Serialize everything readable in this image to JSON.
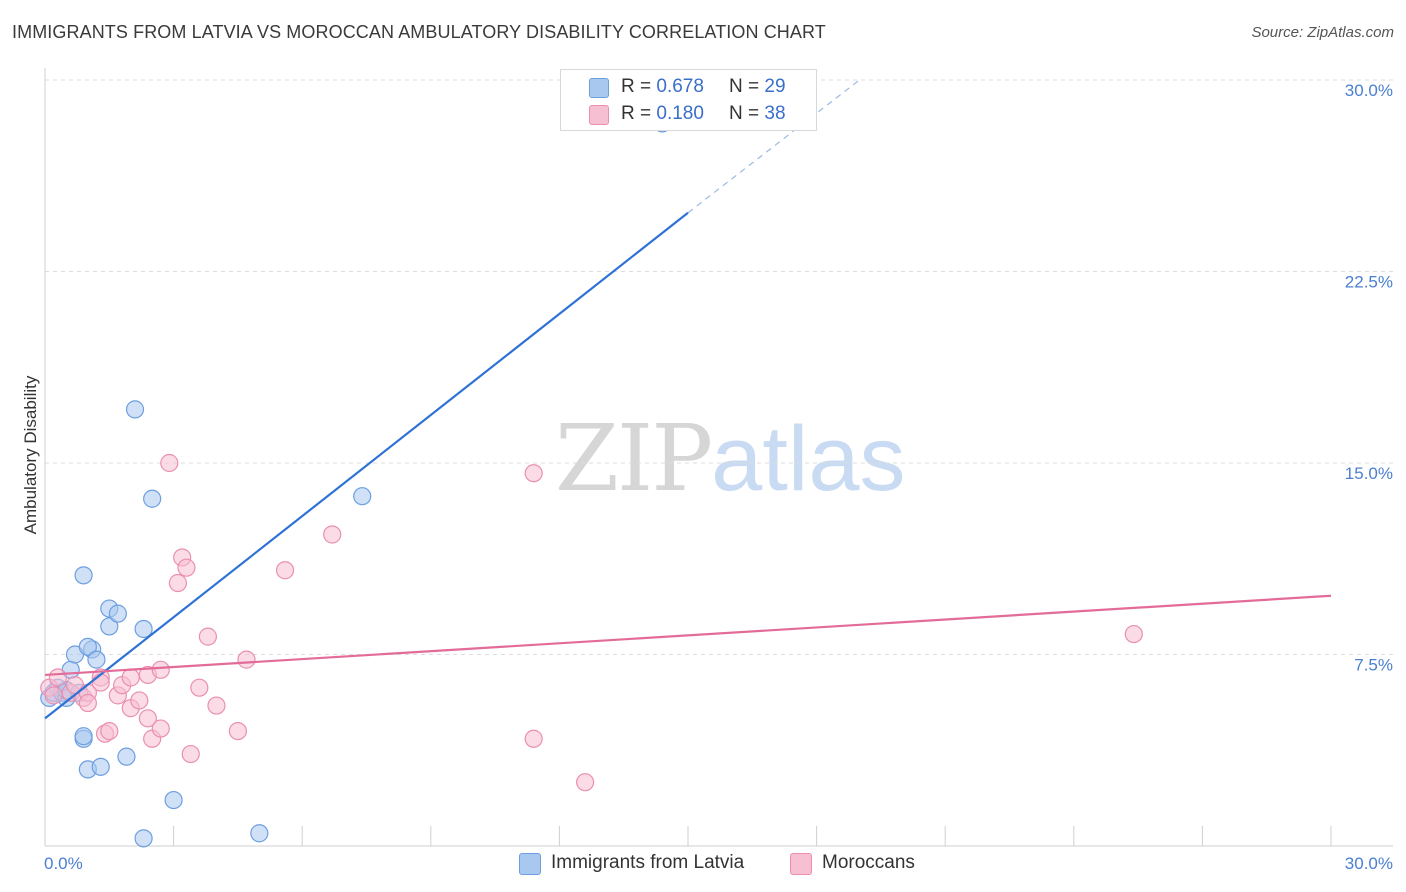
{
  "title": "IMMIGRANTS FROM LATVIA VS MOROCCAN AMBULATORY DISABILITY CORRELATION CHART",
  "source": "Source: ZipAtlas.com",
  "watermark": {
    "zip": "ZIP",
    "atlas": "atlas"
  },
  "legend_top": [
    {
      "r_label": "R = ",
      "r_value": "0.678",
      "n_label": "N = ",
      "n_value": "29",
      "color": "#a9c8f0",
      "border": "#6d9fe0"
    },
    {
      "r_label": "R = ",
      "r_value": "0.180",
      "n_label": "N = ",
      "n_value": "38",
      "color": "#f7c0d2",
      "border": "#ea8fb0"
    }
  ],
  "legend_bottom": [
    {
      "label": "Immigrants from Latvia",
      "color": "#a9c8f0",
      "border": "#6d9fe0"
    },
    {
      "label": "Moroccans",
      "color": "#f7c0d2",
      "border": "#ea8fb0"
    }
  ],
  "chart_data": {
    "type": "scatter",
    "title": "IMMIGRANTS FROM LATVIA VS MOROCCAN AMBULATORY DISABILITY CORRELATION CHART",
    "xlabel": "",
    "ylabel": "Ambulatory Disability",
    "xlim": [
      0,
      30
    ],
    "ylim": [
      0,
      30
    ],
    "y_ticks": [
      {
        "value": 7.5,
        "label": "7.5%"
      },
      {
        "value": 15.0,
        "label": "15.0%"
      },
      {
        "value": 22.5,
        "label": "22.5%"
      },
      {
        "value": 30.0,
        "label": "30.0%"
      }
    ],
    "x_tick_labels": [
      {
        "value": 0,
        "label": "0.0%"
      },
      {
        "value": 30,
        "label": "30.0%"
      }
    ],
    "x_minor_ticks": [
      3,
      6,
      9,
      12,
      15,
      18,
      21,
      24,
      27,
      30
    ],
    "series": [
      {
        "name": "Immigrants from Latvia",
        "color": "#a9c8f0",
        "stroke": "#6d9fe0",
        "line_color": "#2f72d6",
        "trend": {
          "x0": 0,
          "y0": 5.0,
          "x1": 15.0,
          "y1": 24.8,
          "dash_to_x": 19.0,
          "dash_to_y": 30.0
        },
        "points": [
          [
            0.1,
            5.8
          ],
          [
            0.2,
            6.0
          ],
          [
            0.3,
            6.2
          ],
          [
            0.4,
            6.0
          ],
          [
            0.5,
            5.8
          ],
          [
            0.6,
            6.9
          ],
          [
            0.7,
            7.5
          ],
          [
            0.5,
            6.1
          ],
          [
            0.8,
            6.0
          ],
          [
            0.9,
            4.2
          ],
          [
            1.0,
            3.0
          ],
          [
            0.9,
            10.6
          ],
          [
            0.9,
            4.3
          ],
          [
            1.1,
            7.7
          ],
          [
            1.0,
            7.8
          ],
          [
            1.2,
            7.3
          ],
          [
            1.3,
            3.1
          ],
          [
            1.5,
            8.6
          ],
          [
            1.5,
            9.3
          ],
          [
            1.7,
            9.1
          ],
          [
            1.9,
            3.5
          ],
          [
            2.1,
            17.1
          ],
          [
            2.3,
            0.3
          ],
          [
            2.3,
            8.5
          ],
          [
            2.5,
            13.6
          ],
          [
            3.0,
            1.8
          ],
          [
            5.0,
            0.5
          ],
          [
            7.4,
            13.7
          ],
          [
            14.4,
            28.3
          ]
        ]
      },
      {
        "name": "Moroccans",
        "color": "#f7c0d2",
        "stroke": "#ea8fb0",
        "line_color": "#e36b98",
        "trend": {
          "x0": 0,
          "y0": 6.7,
          "x1": 30,
          "y1": 9.8
        },
        "points": [
          [
            0.1,
            6.2
          ],
          [
            0.2,
            5.9
          ],
          [
            0.3,
            6.6
          ],
          [
            0.6,
            6.0
          ],
          [
            0.7,
            6.3
          ],
          [
            0.9,
            5.8
          ],
          [
            1.0,
            6.0
          ],
          [
            1.0,
            5.6
          ],
          [
            1.3,
            6.6
          ],
          [
            1.3,
            6.4
          ],
          [
            1.4,
            4.4
          ],
          [
            1.5,
            4.5
          ],
          [
            1.7,
            5.9
          ],
          [
            1.8,
            6.3
          ],
          [
            2.0,
            6.6
          ],
          [
            2.0,
            5.4
          ],
          [
            2.2,
            5.7
          ],
          [
            2.4,
            6.7
          ],
          [
            2.4,
            5.0
          ],
          [
            2.5,
            4.2
          ],
          [
            2.7,
            6.9
          ],
          [
            2.7,
            4.6
          ],
          [
            2.9,
            15.0
          ],
          [
            3.1,
            10.3
          ],
          [
            3.2,
            11.3
          ],
          [
            3.3,
            10.9
          ],
          [
            3.4,
            3.6
          ],
          [
            3.6,
            6.2
          ],
          [
            3.8,
            8.2
          ],
          [
            4.0,
            5.5
          ],
          [
            4.5,
            4.5
          ],
          [
            4.7,
            7.3
          ],
          [
            5.6,
            10.8
          ],
          [
            6.7,
            12.2
          ],
          [
            11.4,
            14.6
          ],
          [
            11.4,
            4.2
          ],
          [
            12.6,
            2.5
          ],
          [
            25.4,
            8.3
          ]
        ]
      }
    ]
  }
}
